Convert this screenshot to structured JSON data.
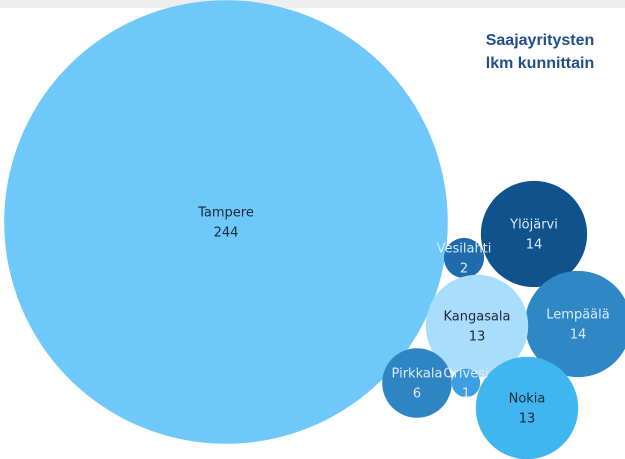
{
  "chart_data": {
    "type": "packed-bubble",
    "title": [
      "Saajayritysten",
      "lkm kunnittain"
    ],
    "categories": [
      "Tampere",
      "Ylöjärvi",
      "Vesilahti",
      "Lempäälä",
      "Kangasala",
      "Pirkkala",
      "Orivesi",
      "Nokia"
    ],
    "values": [
      244,
      14,
      2,
      14,
      13,
      6,
      1,
      13
    ],
    "colors": [
      "#6ec8fa",
      "#10528c",
      "#1f6bab",
      "#2f87c6",
      "#a8ddfb",
      "#2f84c3",
      "#3f9ee3",
      "#3fb6f0"
    ]
  }
}
